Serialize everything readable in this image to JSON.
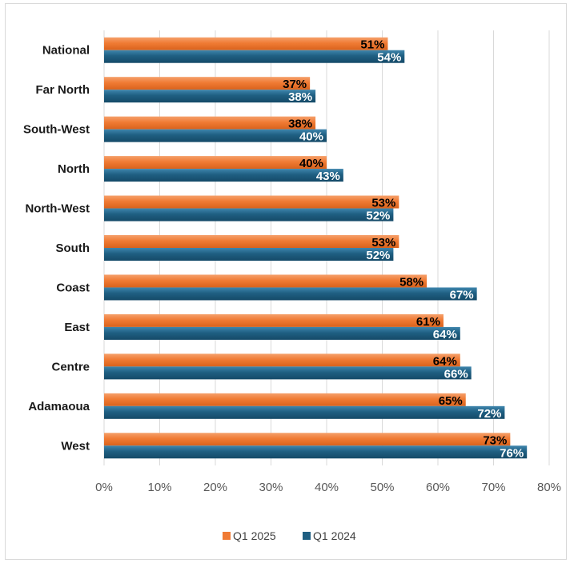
{
  "chart_data": {
    "type": "bar",
    "orientation": "horizontal",
    "categories": [
      "National",
      "Far North",
      "South-West",
      "North",
      "North-West",
      "South",
      "Coast",
      "East",
      "Centre",
      "Adamaoua",
      "West"
    ],
    "series": [
      {
        "name": "Q1 2025",
        "color": "#f07b34",
        "label_color": "#000000",
        "values": [
          51,
          37,
          38,
          40,
          53,
          53,
          58,
          61,
          64,
          65,
          73
        ]
      },
      {
        "name": "Q1 2024",
        "color": "#1f5f82",
        "label_color": "#ffffff",
        "values": [
          54,
          38,
          40,
          43,
          52,
          52,
          67,
          64,
          66,
          72,
          76
        ]
      }
    ],
    "xlim": [
      0,
      80
    ],
    "xticks": [
      0,
      10,
      20,
      30,
      40,
      50,
      60,
      70,
      80
    ],
    "tick_suffix": "%",
    "value_suffix": "%",
    "grid": true,
    "legend_position": "bottom"
  }
}
